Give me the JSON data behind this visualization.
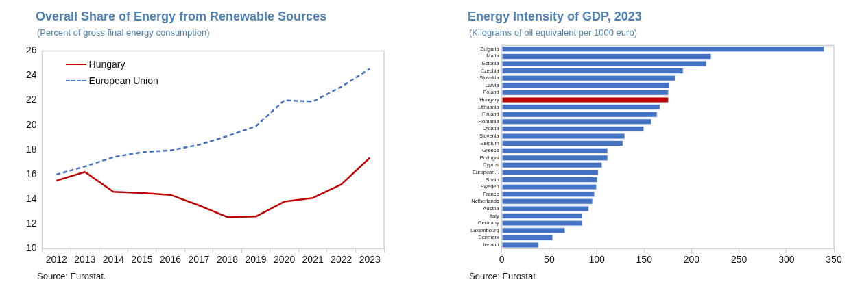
{
  "chart_data": [
    {
      "type": "line",
      "title": "Overall Share of Energy from Renewable Sources",
      "subtitle": "(Percent of gross final energy consumption)",
      "categories": [
        "2012",
        "2013",
        "2014",
        "2015",
        "2016",
        "2017",
        "2018",
        "2019",
        "2020",
        "2021",
        "2022",
        "2023"
      ],
      "series": [
        {
          "name": "Hungary",
          "color": "#c00000",
          "line_style": "solid",
          "values": [
            15.5,
            16.2,
            14.6,
            14.5,
            14.35,
            13.5,
            12.55,
            12.6,
            13.8,
            14.1,
            15.2,
            17.35
          ]
        },
        {
          "name": "European Union",
          "color": "#4472c4",
          "line_style": "dashed",
          "values": [
            16.0,
            16.65,
            17.4,
            17.8,
            17.95,
            18.4,
            19.1,
            19.9,
            22.0,
            21.9,
            23.1,
            24.55
          ]
        }
      ],
      "ylim": [
        10,
        26
      ],
      "yticks": [
        10,
        12,
        14,
        16,
        18,
        20,
        22,
        24,
        26
      ],
      "grid": false,
      "legend": "top left",
      "annotations": [
        "Source: Eurostat."
      ]
    },
    {
      "type": "bar",
      "orientation": "horizontal",
      "title": "Energy Intensity of GDP, 2023",
      "subtitle": "(Kilograms of oil equivalent per 1000 euro)",
      "categories": [
        "Bulgaria",
        "Malta",
        "Estonia",
        "Czechia",
        "Slovakia",
        "Latvia",
        "Poland",
        "Hungary",
        "Lithuania",
        "Finland",
        "Romania",
        "Croatia",
        "Slovenia",
        "Belgium",
        "Greece",
        "Portugal",
        "Cyprus",
        "European...",
        "Spain",
        "Sweden",
        "France",
        "Netherlands",
        "Austria",
        "Italy",
        "Germany",
        "Luxembourg",
        "Denmark",
        "Ireland"
      ],
      "values": [
        340,
        221,
        216,
        191.5,
        183,
        177,
        176,
        176,
        167,
        164,
        158,
        150,
        130,
        128,
        112,
        112,
        106,
        102,
        101,
        100,
        98,
        96,
        92,
        85,
        85,
        67,
        54,
        39
      ],
      "colors": [
        "#4472c4",
        "#4472c4",
        "#4472c4",
        "#4472c4",
        "#4472c4",
        "#4472c4",
        "#4472c4",
        "#c00000",
        "#4472c4",
        "#4472c4",
        "#4472c4",
        "#4472c4",
        "#4472c4",
        "#4472c4",
        "#4472c4",
        "#4472c4",
        "#4472c4",
        "#4472c4",
        "#4472c4",
        "#4472c4",
        "#4472c4",
        "#4472c4",
        "#4472c4",
        "#4472c4",
        "#4472c4",
        "#4472c4",
        "#4472c4",
        "#4472c4"
      ],
      "xlim": [
        0,
        350
      ],
      "xticks": [
        0,
        50,
        100,
        150,
        200,
        250,
        300,
        350
      ],
      "grid": false,
      "annotations": [
        "Source: Eurostat"
      ]
    }
  ]
}
